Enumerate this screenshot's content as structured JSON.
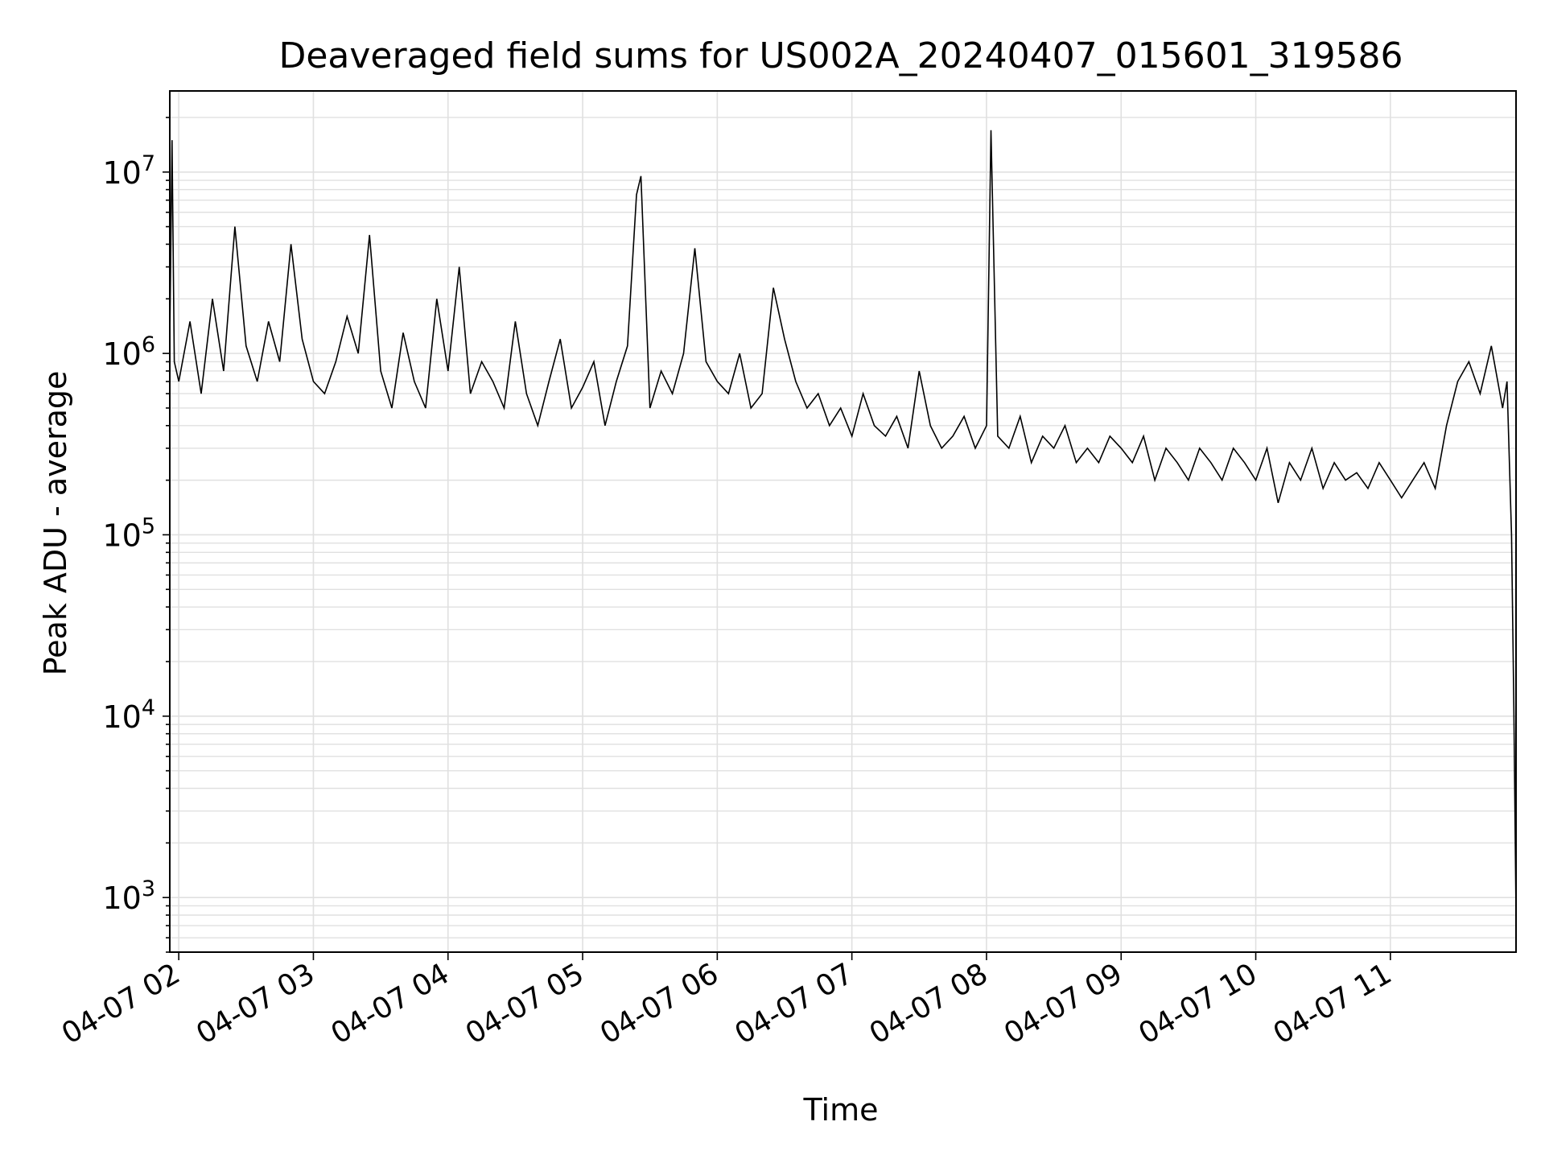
{
  "chart_data": {
    "type": "line",
    "title": "Deaveraged field sums for US002A_20240407_015601_319586",
    "xlabel": "Time",
    "ylabel": "Peak ADU - average",
    "yscale": "log",
    "ylim": [
      500,
      28000000
    ],
    "xlim": [
      "2024-04-07 01:56",
      "2024-04-07 11:56"
    ],
    "grid": true,
    "line_color": "#000000",
    "grid_color": "#e0e0e0",
    "x_ticks": [
      {
        "label": "04-07 02",
        "value": "2024-04-07 02:00"
      },
      {
        "label": "04-07 03",
        "value": "2024-04-07 03:00"
      },
      {
        "label": "04-07 04",
        "value": "2024-04-07 04:00"
      },
      {
        "label": "04-07 05",
        "value": "2024-04-07 05:00"
      },
      {
        "label": "04-07 06",
        "value": "2024-04-07 06:00"
      },
      {
        "label": "04-07 07",
        "value": "2024-04-07 07:00"
      },
      {
        "label": "04-07 08",
        "value": "2024-04-07 08:00"
      },
      {
        "label": "04-07 09",
        "value": "2024-04-07 09:00"
      },
      {
        "label": "04-07 10",
        "value": "2024-04-07 10:00"
      },
      {
        "label": "04-07 11",
        "value": "2024-04-07 11:00"
      }
    ],
    "y_ticks": [
      {
        "base": "10",
        "exp": "3",
        "value": 1000
      },
      {
        "base": "10",
        "exp": "4",
        "value": 10000
      },
      {
        "base": "10",
        "exp": "5",
        "value": 100000
      },
      {
        "base": "10",
        "exp": "6",
        "value": 1000000
      },
      {
        "base": "10",
        "exp": "7",
        "value": 10000000
      }
    ],
    "series": [
      {
        "x": [
          "2024-04-07 01:56",
          "2024-04-07 01:57",
          "2024-04-07 01:58",
          "2024-04-07 02:00",
          "2024-04-07 02:05",
          "2024-04-07 02:10",
          "2024-04-07 02:15",
          "2024-04-07 02:20",
          "2024-04-07 02:25",
          "2024-04-07 02:30",
          "2024-04-07 02:35",
          "2024-04-07 02:40",
          "2024-04-07 02:45",
          "2024-04-07 02:50",
          "2024-04-07 02:55",
          "2024-04-07 03:00",
          "2024-04-07 03:05",
          "2024-04-07 03:10",
          "2024-04-07 03:15",
          "2024-04-07 03:20",
          "2024-04-07 03:25",
          "2024-04-07 03:30",
          "2024-04-07 03:35",
          "2024-04-07 03:40",
          "2024-04-07 03:45",
          "2024-04-07 03:50",
          "2024-04-07 03:55",
          "2024-04-07 04:00",
          "2024-04-07 04:05",
          "2024-04-07 04:10",
          "2024-04-07 04:15",
          "2024-04-07 04:20",
          "2024-04-07 04:25",
          "2024-04-07 04:30",
          "2024-04-07 04:35",
          "2024-04-07 04:40",
          "2024-04-07 04:45",
          "2024-04-07 04:50",
          "2024-04-07 04:55",
          "2024-04-07 05:00",
          "2024-04-07 05:05",
          "2024-04-07 05:10",
          "2024-04-07 05:15",
          "2024-04-07 05:20",
          "2024-04-07 05:24",
          "2024-04-07 05:26",
          "2024-04-07 05:30",
          "2024-04-07 05:35",
          "2024-04-07 05:40",
          "2024-04-07 05:45",
          "2024-04-07 05:50",
          "2024-04-07 05:55",
          "2024-04-07 06:00",
          "2024-04-07 06:05",
          "2024-04-07 06:10",
          "2024-04-07 06:15",
          "2024-04-07 06:20",
          "2024-04-07 06:25",
          "2024-04-07 06:30",
          "2024-04-07 06:35",
          "2024-04-07 06:40",
          "2024-04-07 06:45",
          "2024-04-07 06:50",
          "2024-04-07 06:55",
          "2024-04-07 07:00",
          "2024-04-07 07:05",
          "2024-04-07 07:10",
          "2024-04-07 07:15",
          "2024-04-07 07:20",
          "2024-04-07 07:25",
          "2024-04-07 07:30",
          "2024-04-07 07:35",
          "2024-04-07 07:40",
          "2024-04-07 07:45",
          "2024-04-07 07:50",
          "2024-04-07 07:55",
          "2024-04-07 08:00",
          "2024-04-07 08:02",
          "2024-04-07 08:05",
          "2024-04-07 08:10",
          "2024-04-07 08:15",
          "2024-04-07 08:20",
          "2024-04-07 08:25",
          "2024-04-07 08:30",
          "2024-04-07 08:35",
          "2024-04-07 08:40",
          "2024-04-07 08:45",
          "2024-04-07 08:50",
          "2024-04-07 08:55",
          "2024-04-07 09:00",
          "2024-04-07 09:05",
          "2024-04-07 09:10",
          "2024-04-07 09:15",
          "2024-04-07 09:20",
          "2024-04-07 09:25",
          "2024-04-07 09:30",
          "2024-04-07 09:35",
          "2024-04-07 09:40",
          "2024-04-07 09:45",
          "2024-04-07 09:50",
          "2024-04-07 09:55",
          "2024-04-07 10:00",
          "2024-04-07 10:05",
          "2024-04-07 10:10",
          "2024-04-07 10:15",
          "2024-04-07 10:20",
          "2024-04-07 10:25",
          "2024-04-07 10:30",
          "2024-04-07 10:35",
          "2024-04-07 10:40",
          "2024-04-07 10:45",
          "2024-04-07 10:50",
          "2024-04-07 10:55",
          "2024-04-07 11:00",
          "2024-04-07 11:05",
          "2024-04-07 11:10",
          "2024-04-07 11:15",
          "2024-04-07 11:20",
          "2024-04-07 11:25",
          "2024-04-07 11:30",
          "2024-04-07 11:35",
          "2024-04-07 11:40",
          "2024-04-07 11:45",
          "2024-04-07 11:50",
          "2024-04-07 11:52",
          "2024-04-07 11:54",
          "2024-04-07 11:55",
          "2024-04-07 11:56"
        ],
        "values": [
          1200000,
          15000000,
          900000,
          700000,
          1500000,
          600000,
          2000000,
          800000,
          5000000,
          1100000,
          700000,
          1500000,
          900000,
          4000000,
          1200000,
          700000,
          600000,
          900000,
          1600000,
          1000000,
          4500000,
          800000,
          500000,
          1300000,
          700000,
          500000,
          2000000,
          800000,
          3000000,
          600000,
          900000,
          700000,
          500000,
          1500000,
          600000,
          400000,
          700000,
          1200000,
          500000,
          650000,
          900000,
          400000,
          700000,
          1100000,
          7500000,
          9500000,
          500000,
          800000,
          600000,
          1000000,
          3800000,
          900000,
          700000,
          600000,
          1000000,
          500000,
          600000,
          2300000,
          1200000,
          700000,
          500000,
          600000,
          400000,
          500000,
          350000,
          600000,
          400000,
          350000,
          450000,
          300000,
          800000,
          400000,
          300000,
          350000,
          450000,
          300000,
          400000,
          17000000,
          350000,
          300000,
          450000,
          250000,
          350000,
          300000,
          400000,
          250000,
          300000,
          250000,
          350000,
          300000,
          250000,
          350000,
          200000,
          300000,
          250000,
          200000,
          300000,
          250000,
          200000,
          300000,
          250000,
          200000,
          300000,
          150000,
          250000,
          200000,
          300000,
          180000,
          250000,
          200000,
          220000,
          180000,
          250000,
          200000,
          160000,
          200000,
          250000,
          180000,
          400000,
          700000,
          900000,
          600000,
          1100000,
          500000,
          700000,
          100000,
          12000,
          800
        ]
      }
    ]
  }
}
